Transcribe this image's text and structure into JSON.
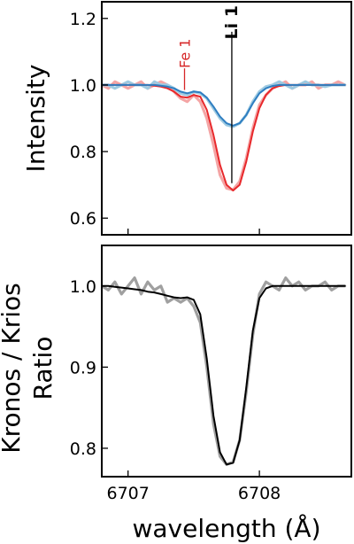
{
  "chart_data": [
    {
      "type": "line",
      "ylabel": "Intensity",
      "xlim": [
        6706.8,
        6708.7
      ],
      "ylim": [
        0.55,
        1.25
      ],
      "yticks": [
        0.6,
        0.8,
        1.0,
        1.2
      ],
      "yticklabels": [
        "0.6",
        "0.8",
        "1.0",
        "1.2"
      ],
      "xticks": [
        6707,
        6708
      ],
      "show_xticklabels": false,
      "annotations": [
        {
          "text": "Fe 1",
          "x": 6707.43,
          "y_top": 1.15,
          "y_line_bottom": 0.985,
          "color": "#d62728"
        },
        {
          "text": "Li 1",
          "x": 6707.79,
          "y_top": 1.25,
          "y_line_bottom": 0.705,
          "color": "#000000"
        }
      ],
      "series": [
        {
          "style": "raw",
          "color": "#f4a5a5",
          "x": [
            6706.8,
            6706.85,
            6706.9,
            6706.95,
            6707.0,
            6707.05,
            6707.1,
            6707.15,
            6707.2,
            6707.25,
            6707.3,
            6707.35,
            6707.4,
            6707.45,
            6707.5,
            6707.55,
            6707.6,
            6707.65,
            6707.7,
            6707.75,
            6707.8,
            6707.85,
            6707.9,
            6707.95,
            6708.0,
            6708.05,
            6708.1,
            6708.15,
            6708.2,
            6708.25,
            6708.3,
            6708.35,
            6708.4,
            6708.45,
            6708.5,
            6708.55,
            6708.6,
            6708.65
          ],
          "values": [
            1.0,
            0.99,
            1.01,
            1.0,
            0.99,
            1.0,
            1.01,
            0.99,
            1.0,
            1.01,
            1.0,
            0.98,
            0.96,
            0.95,
            0.97,
            0.95,
            0.9,
            0.82,
            0.73,
            0.69,
            0.685,
            0.71,
            0.78,
            0.87,
            0.94,
            0.97,
            0.99,
            1.0,
            1.01,
            0.99,
            1.0,
            1.0,
            1.01,
            0.99,
            1.0,
            1.0,
            1.01,
            1.0
          ]
        },
        {
          "style": "raw",
          "color": "#9ecae1",
          "x": [
            6706.8,
            6706.85,
            6706.9,
            6706.95,
            6707.0,
            6707.05,
            6707.1,
            6707.15,
            6707.2,
            6707.25,
            6707.3,
            6707.35,
            6707.4,
            6707.45,
            6707.5,
            6707.55,
            6707.6,
            6707.65,
            6707.7,
            6707.75,
            6707.8,
            6707.85,
            6707.9,
            6707.95,
            6708.0,
            6708.05,
            6708.1,
            6708.15,
            6708.2,
            6708.25,
            6708.3,
            6708.35,
            6708.4,
            6708.45,
            6708.5,
            6708.55,
            6708.6,
            6708.65
          ],
          "values": [
            1.0,
            1.0,
            0.99,
            1.0,
            1.01,
            1.0,
            1.0,
            0.99,
            1.01,
            1.0,
            1.0,
            0.99,
            0.975,
            0.97,
            0.98,
            0.975,
            0.96,
            0.93,
            0.9,
            0.88,
            0.875,
            0.885,
            0.91,
            0.95,
            0.98,
            0.995,
            1.0,
            1.01,
            1.0,
            0.99,
            1.0,
            1.01,
            1.0,
            1.0,
            0.995,
            1.0,
            1.0,
            1.0
          ]
        },
        {
          "style": "model",
          "color": "#e8282b",
          "x": [
            6706.8,
            6706.85,
            6706.9,
            6706.95,
            6707.0,
            6707.05,
            6707.1,
            6707.15,
            6707.2,
            6707.25,
            6707.3,
            6707.35,
            6707.4,
            6707.45,
            6707.5,
            6707.55,
            6707.6,
            6707.65,
            6707.7,
            6707.75,
            6707.8,
            6707.85,
            6707.9,
            6707.95,
            6708.0,
            6708.05,
            6708.1,
            6708.15,
            6708.2,
            6708.25,
            6708.3,
            6708.35,
            6708.4,
            6708.45,
            6708.5,
            6708.55,
            6708.6,
            6708.65
          ],
          "values": [
            1.0,
            1.0,
            1.0,
            1.0,
            1.0,
            1.0,
            1.0,
            1.0,
            0.998,
            0.995,
            0.99,
            0.98,
            0.965,
            0.962,
            0.97,
            0.965,
            0.925,
            0.85,
            0.76,
            0.7,
            0.683,
            0.7,
            0.77,
            0.86,
            0.93,
            0.97,
            0.99,
            0.997,
            1.0,
            1.0,
            1.0,
            1.0,
            1.0,
            1.0,
            1.0,
            1.0,
            1.0,
            1.0
          ]
        },
        {
          "style": "model",
          "color": "#2e7ec1",
          "x": [
            6706.8,
            6706.85,
            6706.9,
            6706.95,
            6707.0,
            6707.05,
            6707.1,
            6707.15,
            6707.2,
            6707.25,
            6707.3,
            6707.35,
            6707.4,
            6707.45,
            6707.5,
            6707.55,
            6707.6,
            6707.65,
            6707.7,
            6707.75,
            6707.8,
            6707.85,
            6707.9,
            6707.95,
            6708.0,
            6708.05,
            6708.1,
            6708.15,
            6708.2,
            6708.25,
            6708.3,
            6708.35,
            6708.4,
            6708.45,
            6708.5,
            6708.55,
            6708.6,
            6708.65
          ],
          "values": [
            1.0,
            1.0,
            1.0,
            1.0,
            1.0,
            1.0,
            1.0,
            1.0,
            1.0,
            0.998,
            0.995,
            0.99,
            0.98,
            0.975,
            0.98,
            0.978,
            0.962,
            0.935,
            0.905,
            0.885,
            0.878,
            0.885,
            0.91,
            0.945,
            0.975,
            0.99,
            0.997,
            1.0,
            1.0,
            1.0,
            1.0,
            1.0,
            1.0,
            1.0,
            1.0,
            1.0,
            1.0,
            1.0
          ]
        }
      ]
    },
    {
      "type": "line",
      "ylabel_lines": [
        "Kronos / Krios",
        "Ratio"
      ],
      "xlabel": "wavelength (Å)",
      "xlim": [
        6706.8,
        6708.7
      ],
      "ylim": [
        0.765,
        1.05
      ],
      "yticks": [
        0.8,
        0.9,
        1.0
      ],
      "yticklabels": [
        "0.8",
        "0.9",
        "1.0"
      ],
      "xticks": [
        6707,
        6708
      ],
      "xticklabels": [
        "6707",
        "6708"
      ],
      "series": [
        {
          "style": "raw",
          "color": "#a0a0a0",
          "x": [
            6706.8,
            6706.85,
            6706.9,
            6706.95,
            6707.0,
            6707.05,
            6707.1,
            6707.15,
            6707.2,
            6707.25,
            6707.3,
            6707.35,
            6707.4,
            6707.45,
            6707.5,
            6707.55,
            6707.6,
            6707.65,
            6707.7,
            6707.75,
            6707.8,
            6707.85,
            6707.9,
            6707.95,
            6708.0,
            6708.05,
            6708.1,
            6708.15,
            6708.2,
            6708.25,
            6708.3,
            6708.35,
            6708.4,
            6708.45,
            6708.5,
            6708.55,
            6708.6,
            6708.65
          ],
          "values": [
            1.0,
            0.995,
            1.005,
            0.99,
            1.0,
            1.01,
            0.99,
            1.005,
            0.995,
            1.0,
            0.98,
            0.985,
            0.98,
            0.985,
            0.975,
            0.955,
            0.9,
            0.83,
            0.79,
            0.78,
            0.783,
            0.81,
            0.87,
            0.94,
            0.99,
            1.005,
            1.0,
            0.995,
            1.01,
            1.0,
            1.005,
            0.995,
            1.0,
            1.0,
            1.005,
            0.995,
            1.0,
            1.0
          ]
        },
        {
          "style": "model",
          "color": "#000000",
          "x": [
            6706.8,
            6706.85,
            6706.9,
            6706.95,
            6707.0,
            6707.05,
            6707.1,
            6707.15,
            6707.2,
            6707.25,
            6707.3,
            6707.35,
            6707.4,
            6707.45,
            6707.5,
            6707.55,
            6707.6,
            6707.65,
            6707.7,
            6707.75,
            6707.8,
            6707.85,
            6707.9,
            6707.95,
            6708.0,
            6708.05,
            6708.1,
            6708.15,
            6708.2,
            6708.25,
            6708.3,
            6708.35,
            6708.4,
            6708.45,
            6708.5,
            6708.55,
            6708.6,
            6708.65
          ],
          "values": [
            1.0,
            1.0,
            0.999,
            0.998,
            0.997,
            0.996,
            0.995,
            0.993,
            0.992,
            0.99,
            0.988,
            0.986,
            0.985,
            0.986,
            0.983,
            0.965,
            0.91,
            0.84,
            0.795,
            0.78,
            0.782,
            0.81,
            0.875,
            0.945,
            0.985,
            0.997,
            1.0,
            1.0,
            1.0,
            1.0,
            1.0,
            1.0,
            1.0,
            1.0,
            1.0,
            1.0,
            1.0,
            1.0
          ]
        }
      ]
    }
  ]
}
